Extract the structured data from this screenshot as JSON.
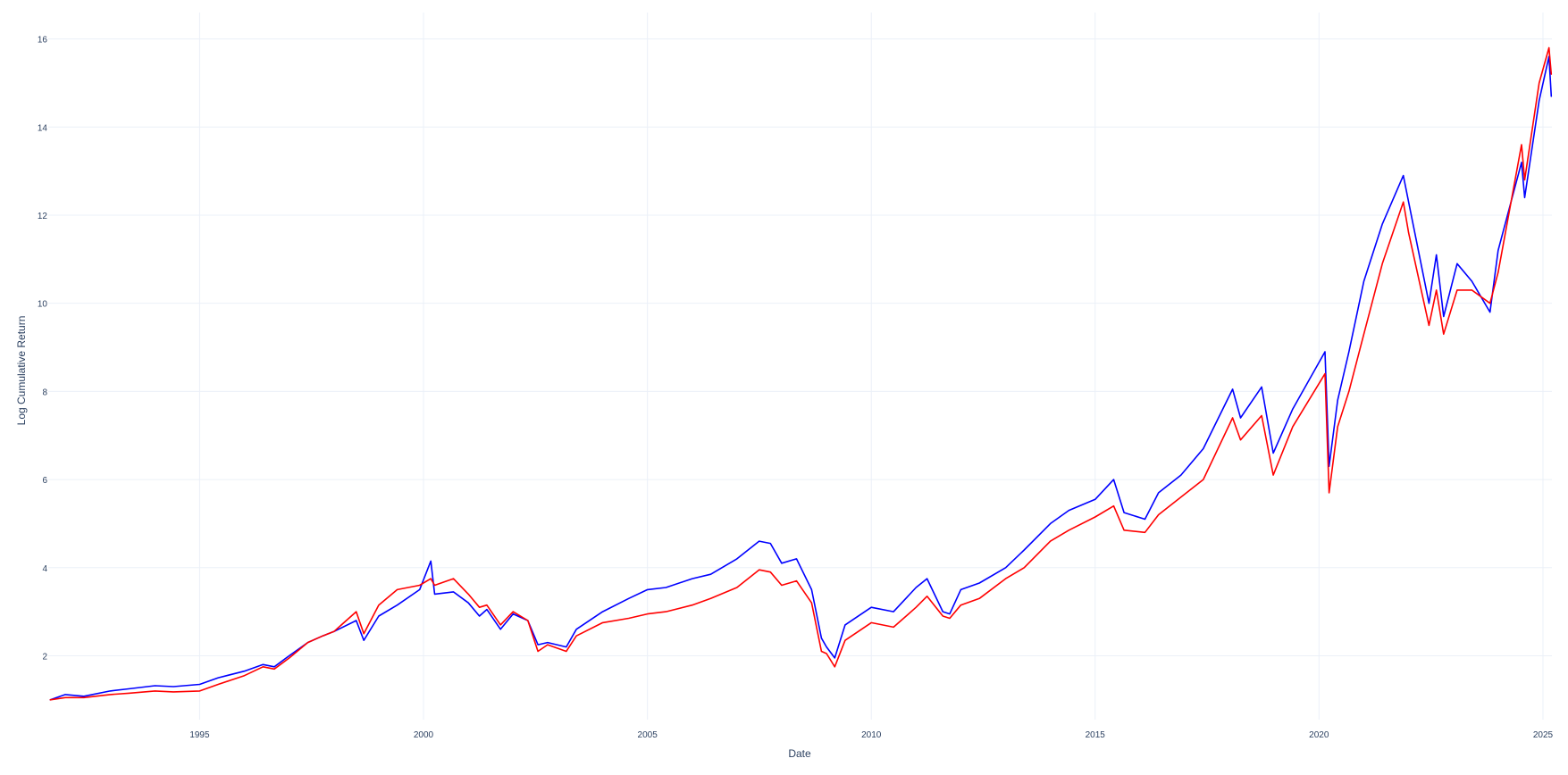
{
  "chart_data": {
    "type": "line",
    "title": "",
    "xlabel": "Date",
    "ylabel": "Log Cumulative Return",
    "xlim": [
      "1991-08-15",
      "2025-03-15"
    ],
    "ylim": [
      0.55,
      16.6
    ],
    "grid": true,
    "legend": "none",
    "x_ticks": [
      "1995",
      "2000",
      "2005",
      "2010",
      "2015",
      "2020",
      "2025"
    ],
    "y_ticks": [
      "2",
      "4",
      "6",
      "8",
      "10",
      "12",
      "14",
      "16"
    ],
    "colors": {
      "background": "#ffffff",
      "grid": "#ebf0f8",
      "text": "#2a3f5f"
    },
    "series": [
      {
        "color": "#0000ff",
        "x": [
          "1991-09-01",
          "1992-01-01",
          "1992-06-01",
          "1993-01-01",
          "1993-06-01",
          "1994-01-01",
          "1994-06-01",
          "1995-01-01",
          "1995-06-01",
          "1996-01-01",
          "1996-06-01",
          "1996-09-01",
          "1997-01-01",
          "1997-06-01",
          "1997-10-01",
          "1998-01-01",
          "1998-07-01",
          "1998-09-01",
          "1999-01-01",
          "1999-06-01",
          "1999-12-01",
          "2000-03-01",
          "2000-04-01",
          "2000-09-01",
          "2001-01-01",
          "2001-04-01",
          "2001-06-01",
          "2001-09-20",
          "2002-01-01",
          "2002-05-01",
          "2002-07-23",
          "2002-10-09",
          "2003-03-11",
          "2003-06-01",
          "2004-01-01",
          "2004-08-01",
          "2005-01-01",
          "2005-06-01",
          "2006-01-01",
          "2006-06-01",
          "2007-01-01",
          "2007-07-01",
          "2007-10-01",
          "2008-01-01",
          "2008-05-01",
          "2008-09-01",
          "2008-11-20",
          "2009-01-01",
          "2009-03-09",
          "2009-06-01",
          "2010-01-01",
          "2010-07-01",
          "2011-01-01",
          "2011-04-01",
          "2011-08-08",
          "2011-10-03",
          "2012-01-01",
          "2012-06-01",
          "2013-01-01",
          "2013-06-01",
          "2014-01-01",
          "2014-06-01",
          "2015-01-01",
          "2015-06-01",
          "2015-08-25",
          "2016-02-11",
          "2016-06-01",
          "2016-12-01",
          "2017-06-01",
          "2018-01-26",
          "2018-04-01",
          "2018-09-20",
          "2018-12-24",
          "2019-06-01",
          "2020-02-19",
          "2020-03-23",
          "2020-06-01",
          "2020-09-01",
          "2021-01-01",
          "2021-06-01",
          "2021-11-19",
          "2022-01-01",
          "2022-06-16",
          "2022-08-16",
          "2022-10-14",
          "2023-02-01",
          "2023-06-01",
          "2023-10-27",
          "2024-01-01",
          "2024-07-10",
          "2024-08-05",
          "2024-12-01",
          "2025-02-19",
          "2025-03-10"
        ],
        "y": [
          1.0,
          1.12,
          1.08,
          1.2,
          1.25,
          1.32,
          1.3,
          1.35,
          1.5,
          1.65,
          1.8,
          1.75,
          2.0,
          2.3,
          2.45,
          2.55,
          2.8,
          2.35,
          2.9,
          3.15,
          3.5,
          4.15,
          3.4,
          3.45,
          3.2,
          2.9,
          3.05,
          2.6,
          2.95,
          2.8,
          2.25,
          2.3,
          2.2,
          2.6,
          3.0,
          3.3,
          3.5,
          3.55,
          3.75,
          3.85,
          4.2,
          4.6,
          4.55,
          4.1,
          4.2,
          3.5,
          2.4,
          2.2,
          1.95,
          2.7,
          3.1,
          3.0,
          3.55,
          3.75,
          3.0,
          2.95,
          3.5,
          3.65,
          4.0,
          4.4,
          5.0,
          5.3,
          5.55,
          6.0,
          5.25,
          5.1,
          5.7,
          6.1,
          6.7,
          8.05,
          7.4,
          8.1,
          6.6,
          7.6,
          8.9,
          6.3,
          7.8,
          8.9,
          10.5,
          11.8,
          12.9,
          12.3,
          10.0,
          11.1,
          9.7,
          10.9,
          10.5,
          9.8,
          11.2,
          13.2,
          12.4,
          14.6,
          15.6,
          14.7
        ]
      },
      {
        "color": "#ff0000",
        "x": [
          "1991-09-01",
          "1992-01-01",
          "1992-06-01",
          "1993-01-01",
          "1993-06-01",
          "1994-01-01",
          "1994-06-01",
          "1995-01-01",
          "1995-06-01",
          "1996-01-01",
          "1996-06-01",
          "1996-09-01",
          "1997-01-01",
          "1997-06-01",
          "1997-10-01",
          "1998-01-01",
          "1998-07-01",
          "1998-09-01",
          "1999-01-01",
          "1999-06-01",
          "1999-12-01",
          "2000-03-01",
          "2000-04-01",
          "2000-09-01",
          "2001-01-01",
          "2001-04-01",
          "2001-06-01",
          "2001-09-20",
          "2002-01-01",
          "2002-05-01",
          "2002-07-23",
          "2002-10-09",
          "2003-03-11",
          "2003-06-01",
          "2004-01-01",
          "2004-08-01",
          "2005-01-01",
          "2005-06-01",
          "2006-01-01",
          "2006-06-01",
          "2007-01-01",
          "2007-07-01",
          "2007-10-01",
          "2008-01-01",
          "2008-05-01",
          "2008-09-01",
          "2008-11-20",
          "2009-01-01",
          "2009-03-09",
          "2009-06-01",
          "2010-01-01",
          "2010-07-01",
          "2011-01-01",
          "2011-04-01",
          "2011-08-08",
          "2011-10-03",
          "2012-01-01",
          "2012-06-01",
          "2013-01-01",
          "2013-06-01",
          "2014-01-01",
          "2014-06-01",
          "2015-01-01",
          "2015-06-01",
          "2015-08-25",
          "2016-02-11",
          "2016-06-01",
          "2016-12-01",
          "2017-06-01",
          "2018-01-26",
          "2018-04-01",
          "2018-09-20",
          "2018-12-24",
          "2019-06-01",
          "2020-02-19",
          "2020-03-23",
          "2020-06-01",
          "2020-09-01",
          "2021-01-01",
          "2021-06-01",
          "2021-11-19",
          "2022-01-01",
          "2022-06-16",
          "2022-08-16",
          "2022-10-14",
          "2023-02-01",
          "2023-06-01",
          "2023-10-27",
          "2024-01-01",
          "2024-07-10",
          "2024-08-05",
          "2024-12-01",
          "2025-02-19",
          "2025-03-10"
        ],
        "y": [
          1.0,
          1.05,
          1.05,
          1.12,
          1.15,
          1.2,
          1.18,
          1.2,
          1.35,
          1.55,
          1.75,
          1.7,
          1.95,
          2.3,
          2.45,
          2.55,
          3.0,
          2.5,
          3.15,
          3.5,
          3.6,
          3.75,
          3.6,
          3.75,
          3.4,
          3.1,
          3.15,
          2.7,
          3.0,
          2.8,
          2.1,
          2.25,
          2.1,
          2.45,
          2.75,
          2.85,
          2.95,
          3.0,
          3.15,
          3.3,
          3.55,
          3.95,
          3.9,
          3.6,
          3.7,
          3.2,
          2.1,
          2.05,
          1.75,
          2.35,
          2.75,
          2.65,
          3.1,
          3.35,
          2.9,
          2.85,
          3.15,
          3.3,
          3.75,
          4.0,
          4.6,
          4.85,
          5.15,
          5.4,
          4.85,
          4.8,
          5.2,
          5.6,
          6.0,
          7.4,
          6.9,
          7.45,
          6.1,
          7.2,
          8.4,
          5.7,
          7.2,
          8.0,
          9.3,
          10.9,
          12.3,
          11.6,
          9.5,
          10.3,
          9.3,
          10.3,
          10.3,
          10.0,
          10.7,
          13.6,
          12.8,
          15.0,
          15.8,
          15.2
        ]
      }
    ]
  }
}
